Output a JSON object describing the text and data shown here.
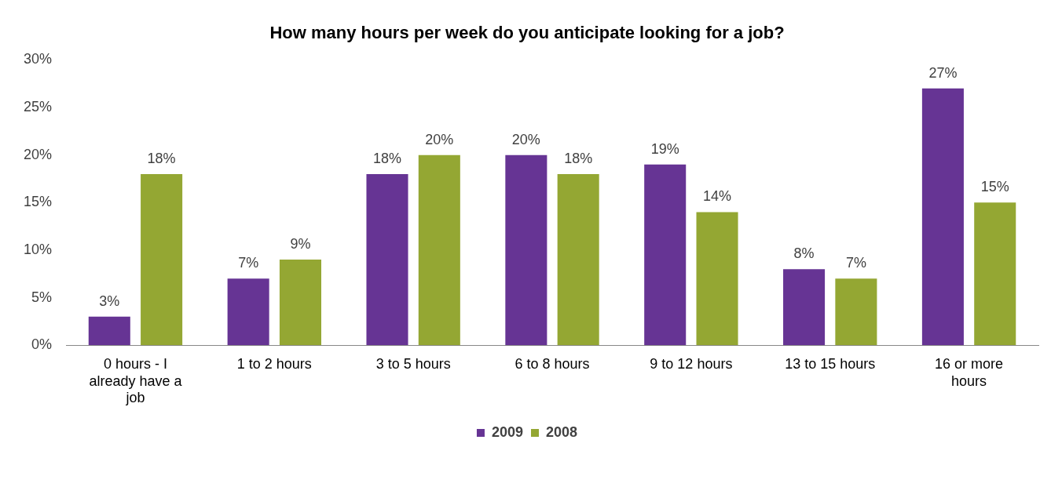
{
  "chart_data": {
    "type": "bar",
    "title": "How many hours per week do you anticipate looking for a job?",
    "categories": [
      "0 hours - I already have a job",
      "1 to 2 hours",
      "3 to 5 hours",
      "6 to 8 hours",
      "9 to 12 hours",
      "13 to 15 hours",
      "16 or more hours"
    ],
    "series": [
      {
        "name": "2009",
        "color": "#663494",
        "values": [
          3,
          7,
          18,
          20,
          19,
          8,
          27
        ],
        "value_labels": [
          "3%",
          "7%",
          "18%",
          "20%",
          "19%",
          "8%",
          "27%"
        ]
      },
      {
        "name": "2008",
        "color": "#94a733",
        "values": [
          18,
          9,
          20,
          18,
          14,
          7,
          15
        ],
        "value_labels": [
          "18%",
          "9%",
          "20%",
          "18%",
          "14%",
          "7%",
          "15%"
        ]
      }
    ],
    "ylim": [
      0,
      30
    ],
    "yticks": [
      {
        "value": 0,
        "label": "0%"
      },
      {
        "value": 5,
        "label": "5%"
      },
      {
        "value": 10,
        "label": "10%"
      },
      {
        "value": 15,
        "label": "15%"
      },
      {
        "value": 20,
        "label": "20%"
      },
      {
        "value": 25,
        "label": "25%"
      },
      {
        "value": 30,
        "label": "30%"
      }
    ],
    "grid": false,
    "legend": "bottom"
  }
}
